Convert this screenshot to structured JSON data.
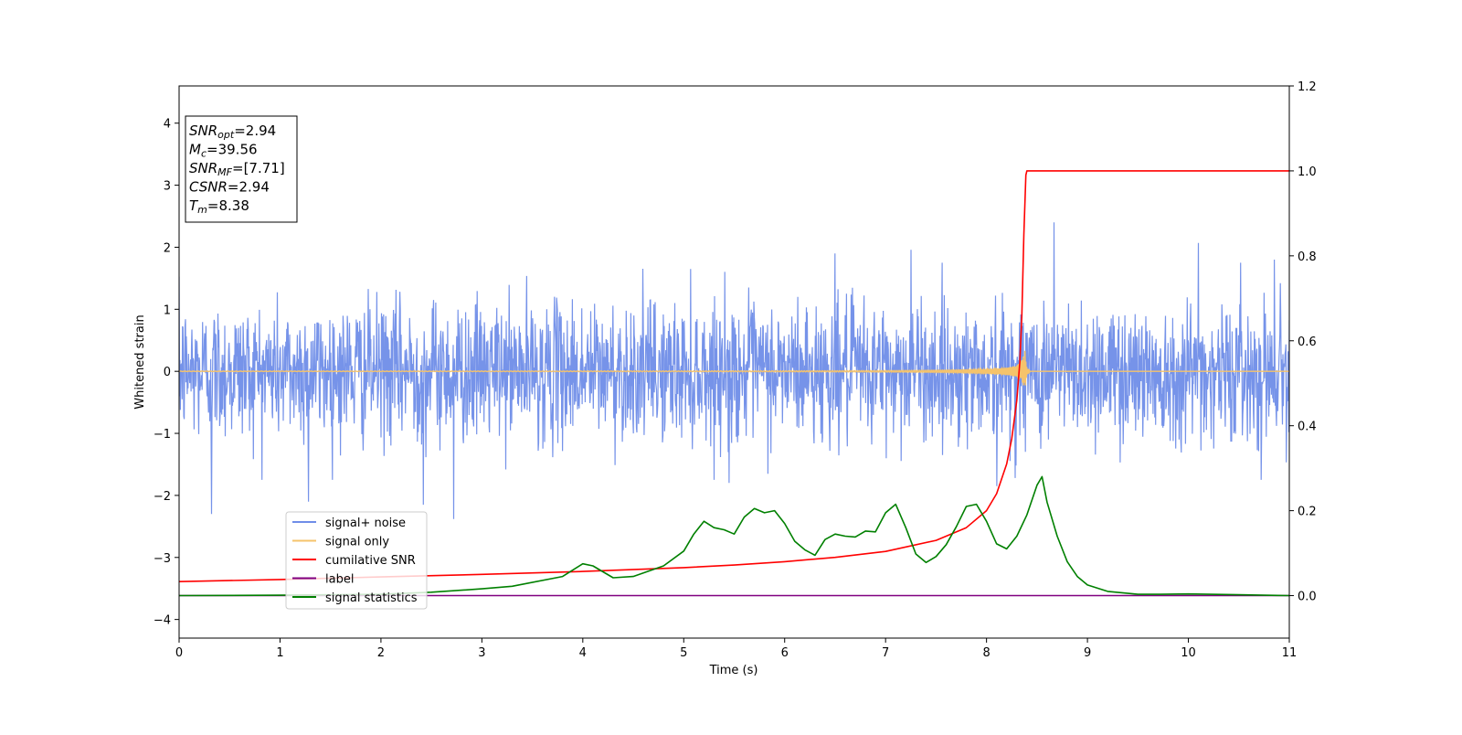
{
  "chart_data": {
    "type": "line",
    "xlabel": "Time (s)",
    "ylabel": "Whitened strain",
    "xlim": [
      0,
      11
    ],
    "ylim": [
      -4.3,
      4.6
    ],
    "ylim_right": [
      -0.1,
      1.2
    ],
    "x_ticks": [
      "0",
      "1",
      "2",
      "3",
      "4",
      "5",
      "6",
      "7",
      "8",
      "9",
      "10",
      "11"
    ],
    "y_ticks": [
      "−4",
      "−3",
      "−2",
      "−1",
      "0",
      "1",
      "2",
      "3",
      "4"
    ],
    "y_ticks_right": [
      "0.0",
      "0.2",
      "0.4",
      "0.6",
      "0.8",
      "1.0",
      "1.2"
    ],
    "grid": false,
    "legend_position": "lower-left",
    "annotation": {
      "lines": [
        {
          "var": "SNR",
          "sub": "opt",
          "val": "=2.94"
        },
        {
          "var": "M",
          "sub": "c",
          "val": "=39.56"
        },
        {
          "var": "SNR",
          "sub": "MF",
          "val": "=[7.71]"
        },
        {
          "var": "CSNR",
          "sub": "",
          "val": "=2.94"
        },
        {
          "var": "T",
          "sub": "m",
          "val": "=8.38"
        }
      ]
    },
    "series": [
      {
        "name": "signal+ noise",
        "color": "#6f8de8",
        "axis": "left",
        "kind": "noise",
        "note_values": "white noise, amplitude approx. within [-1.8, 2.4]",
        "spikes": [
          [
            0.32,
            -2.3
          ],
          [
            1.28,
            -2.1
          ],
          [
            2.72,
            -2.38
          ],
          [
            2.42,
            -2.15
          ],
          [
            8.67,
            2.4
          ],
          [
            6.5,
            1.9
          ],
          [
            7.25,
            1.96
          ],
          [
            10.1,
            2.07
          ],
          [
            10.85,
            1.8
          ],
          [
            5.45,
            -1.8
          ],
          [
            8.1,
            -1.85
          ]
        ]
      },
      {
        "name": "signal only",
        "color": "#f5c36b",
        "axis": "left",
        "kind": "chirp",
        "merger_time": 8.38,
        "peak_amplitude": 0.38
      },
      {
        "name": "cumilative SNR",
        "color": "#ff0000",
        "axis": "right",
        "x": [
          0,
          1,
          2,
          3,
          4,
          5,
          5.5,
          6,
          6.5,
          7,
          7.5,
          7.8,
          8.0,
          8.1,
          8.2,
          8.25,
          8.3,
          8.33,
          8.35,
          8.37,
          8.39,
          8.4,
          9,
          10,
          11
        ],
        "values": [
          0.033,
          0.038,
          0.044,
          0.05,
          0.057,
          0.066,
          0.072,
          0.08,
          0.09,
          0.104,
          0.13,
          0.16,
          0.2,
          0.24,
          0.31,
          0.37,
          0.46,
          0.55,
          0.66,
          0.85,
          0.99,
          1.0,
          1.0,
          1.0,
          1.0
        ]
      },
      {
        "name": "label",
        "color": "#800080",
        "axis": "right",
        "x": [
          0,
          11
        ],
        "values": [
          0,
          0
        ]
      },
      {
        "name": "signal statistics",
        "color": "#008000",
        "axis": "right",
        "x": [
          0,
          1,
          2,
          2.5,
          3,
          3.3,
          3.8,
          4.0,
          4.1,
          4.3,
          4.5,
          4.8,
          5.0,
          5.1,
          5.2,
          5.3,
          5.4,
          5.5,
          5.6,
          5.7,
          5.8,
          5.9,
          6.0,
          6.1,
          6.2,
          6.3,
          6.4,
          6.5,
          6.6,
          6.7,
          6.8,
          6.9,
          7.0,
          7.1,
          7.2,
          7.3,
          7.4,
          7.5,
          7.6,
          7.7,
          7.8,
          7.9,
          8.0,
          8.1,
          8.2,
          8.3,
          8.4,
          8.5,
          8.55,
          8.6,
          8.7,
          8.8,
          8.9,
          9.0,
          9.2,
          9.5,
          9.7,
          10,
          10.5,
          11
        ],
        "values": [
          0.0,
          0.001,
          0.003,
          0.008,
          0.016,
          0.022,
          0.045,
          0.075,
          0.07,
          0.042,
          0.045,
          0.07,
          0.105,
          0.145,
          0.175,
          0.16,
          0.155,
          0.145,
          0.185,
          0.205,
          0.195,
          0.2,
          0.17,
          0.128,
          0.108,
          0.095,
          0.132,
          0.145,
          0.14,
          0.138,
          0.152,
          0.15,
          0.195,
          0.215,
          0.16,
          0.098,
          0.078,
          0.092,
          0.12,
          0.162,
          0.21,
          0.215,
          0.175,
          0.122,
          0.11,
          0.14,
          0.19,
          0.26,
          0.28,
          0.22,
          0.14,
          0.08,
          0.045,
          0.025,
          0.01,
          0.003,
          0.003,
          0.004,
          0.002,
          0.0
        ]
      }
    ]
  }
}
